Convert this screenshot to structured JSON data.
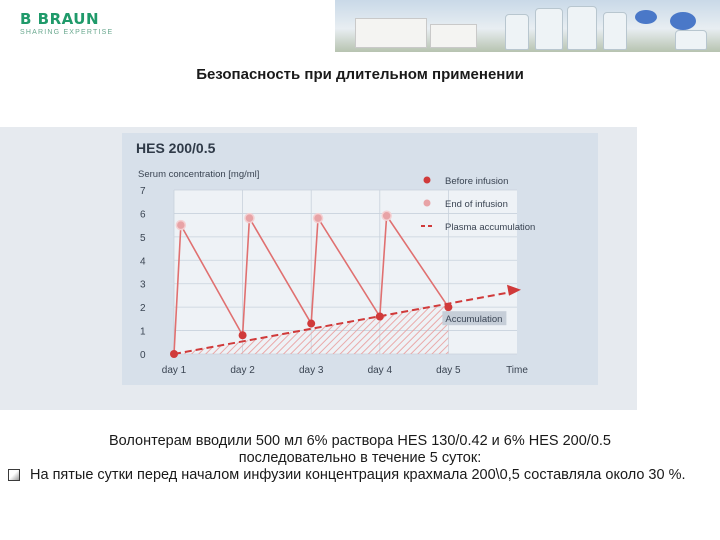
{
  "header": {
    "logo_main": "B BRAUN",
    "logo_sub": "SHARING EXPERTISE"
  },
  "slide_title": "Безопасность при длительном применении",
  "chart_data": {
    "type": "line",
    "title": "HES 200/0.5",
    "ylabel": "Serum concentration [mg/ml]",
    "xlabel": "Time",
    "categories": [
      "day 1",
      "day 2",
      "day 3",
      "day 4",
      "day 5"
    ],
    "x": [
      1,
      1.1,
      2,
      2.1,
      3,
      3.1,
      4,
      4.1,
      5
    ],
    "ylim": [
      0,
      7
    ],
    "yticks": [
      0,
      1,
      2,
      3,
      4,
      5,
      6,
      7
    ],
    "series": [
      {
        "name": "Before infusion",
        "x": [
          1,
          2,
          3,
          4,
          5
        ],
        "values": [
          0,
          0.8,
          1.3,
          1.6,
          2.0
        ],
        "color": "#d03a3a"
      },
      {
        "name": "End of infusion",
        "x": [
          1.1,
          2.1,
          3.1,
          4.1
        ],
        "values": [
          5.5,
          5.8,
          5.8,
          5.9
        ],
        "color": "#e8a3a6"
      },
      {
        "name": "Plasma accumulation",
        "x": [
          1,
          6
        ],
        "values": [
          0,
          2.7
        ],
        "color": "#d03a3a",
        "style": "dashed"
      }
    ],
    "annotations": [
      "Accumulation"
    ],
    "grid": true,
    "legend_position": "top-right"
  },
  "body": {
    "line1": "Волонтерам вводили 500 мл  6% раствора HES 130/0.42 и 6% HES 200/0.5",
    "line2": "последовательно в течение 5 суток:",
    "bullet_text": "На пятые сутки перед началом инфузии концентрация крахмала 200\\0,5 составляла около 30 %."
  }
}
